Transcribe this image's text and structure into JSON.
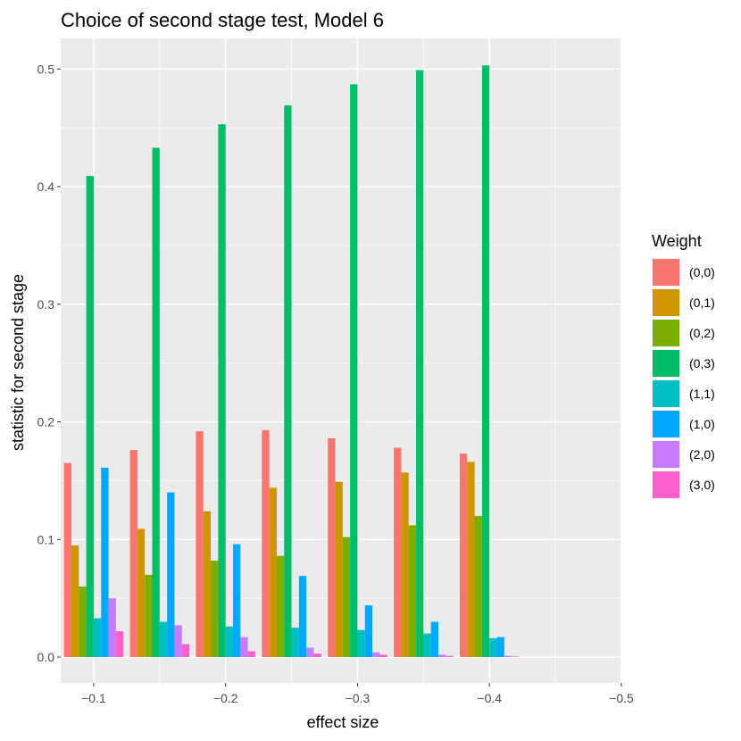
{
  "chart_data": {
    "type": "bar",
    "title": "Choice of second stage test, Model 6",
    "xlabel": "effect size",
    "ylabel": "statistic for second stage",
    "x_axis": {
      "ticks": [
        -0.1,
        -0.2,
        -0.3,
        -0.4,
        -0.5
      ],
      "tick_labels": [
        "−0.1",
        "−0.2",
        "−0.3",
        "−0.4",
        "−0.5"
      ],
      "range_reversed": [
        -0.075,
        -0.5
      ]
    },
    "y_axis": {
      "ticks": [
        0.0,
        0.1,
        0.2,
        0.3,
        0.4,
        0.5
      ],
      "tick_labels": [
        "0.0",
        "0.1",
        "0.2",
        "0.3",
        "0.4",
        "0.5"
      ],
      "ylim": [
        -0.022,
        0.526
      ]
    },
    "categories": [
      -0.1,
      -0.15,
      -0.2,
      -0.25,
      -0.3,
      -0.35,
      -0.4
    ],
    "legend_title": "Weight",
    "legend_position": "right",
    "series": [
      {
        "name": "(0,0)",
        "color": "#F8766D",
        "values": [
          0.165,
          0.176,
          0.192,
          0.193,
          0.186,
          0.178,
          0.173
        ]
      },
      {
        "name": "(0,1)",
        "color": "#CD9600",
        "values": [
          0.095,
          0.109,
          0.124,
          0.144,
          0.149,
          0.157,
          0.166
        ]
      },
      {
        "name": "(0,2)",
        "color": "#7CAE00",
        "values": [
          0.06,
          0.07,
          0.082,
          0.086,
          0.102,
          0.112,
          0.12
        ]
      },
      {
        "name": "(0,3)",
        "color": "#00BE67",
        "values": [
          0.409,
          0.433,
          0.453,
          0.469,
          0.487,
          0.499,
          0.503
        ]
      },
      {
        "name": "(1,1)",
        "color": "#00BFC4",
        "values": [
          0.033,
          0.03,
          0.026,
          0.025,
          0.023,
          0.02,
          0.016
        ]
      },
      {
        "name": "(1,0)",
        "color": "#00A9FF",
        "values": [
          0.161,
          0.14,
          0.096,
          0.069,
          0.044,
          0.03,
          0.017
        ]
      },
      {
        "name": "(2,0)",
        "color": "#C77CFF",
        "values": [
          0.05,
          0.027,
          0.017,
          0.008,
          0.004,
          0.002,
          0.001
        ]
      },
      {
        "name": "(3,0)",
        "color": "#FF61CC",
        "values": [
          0.022,
          0.011,
          0.005,
          0.003,
          0.002,
          0.001,
          0.0005
        ]
      }
    ]
  }
}
